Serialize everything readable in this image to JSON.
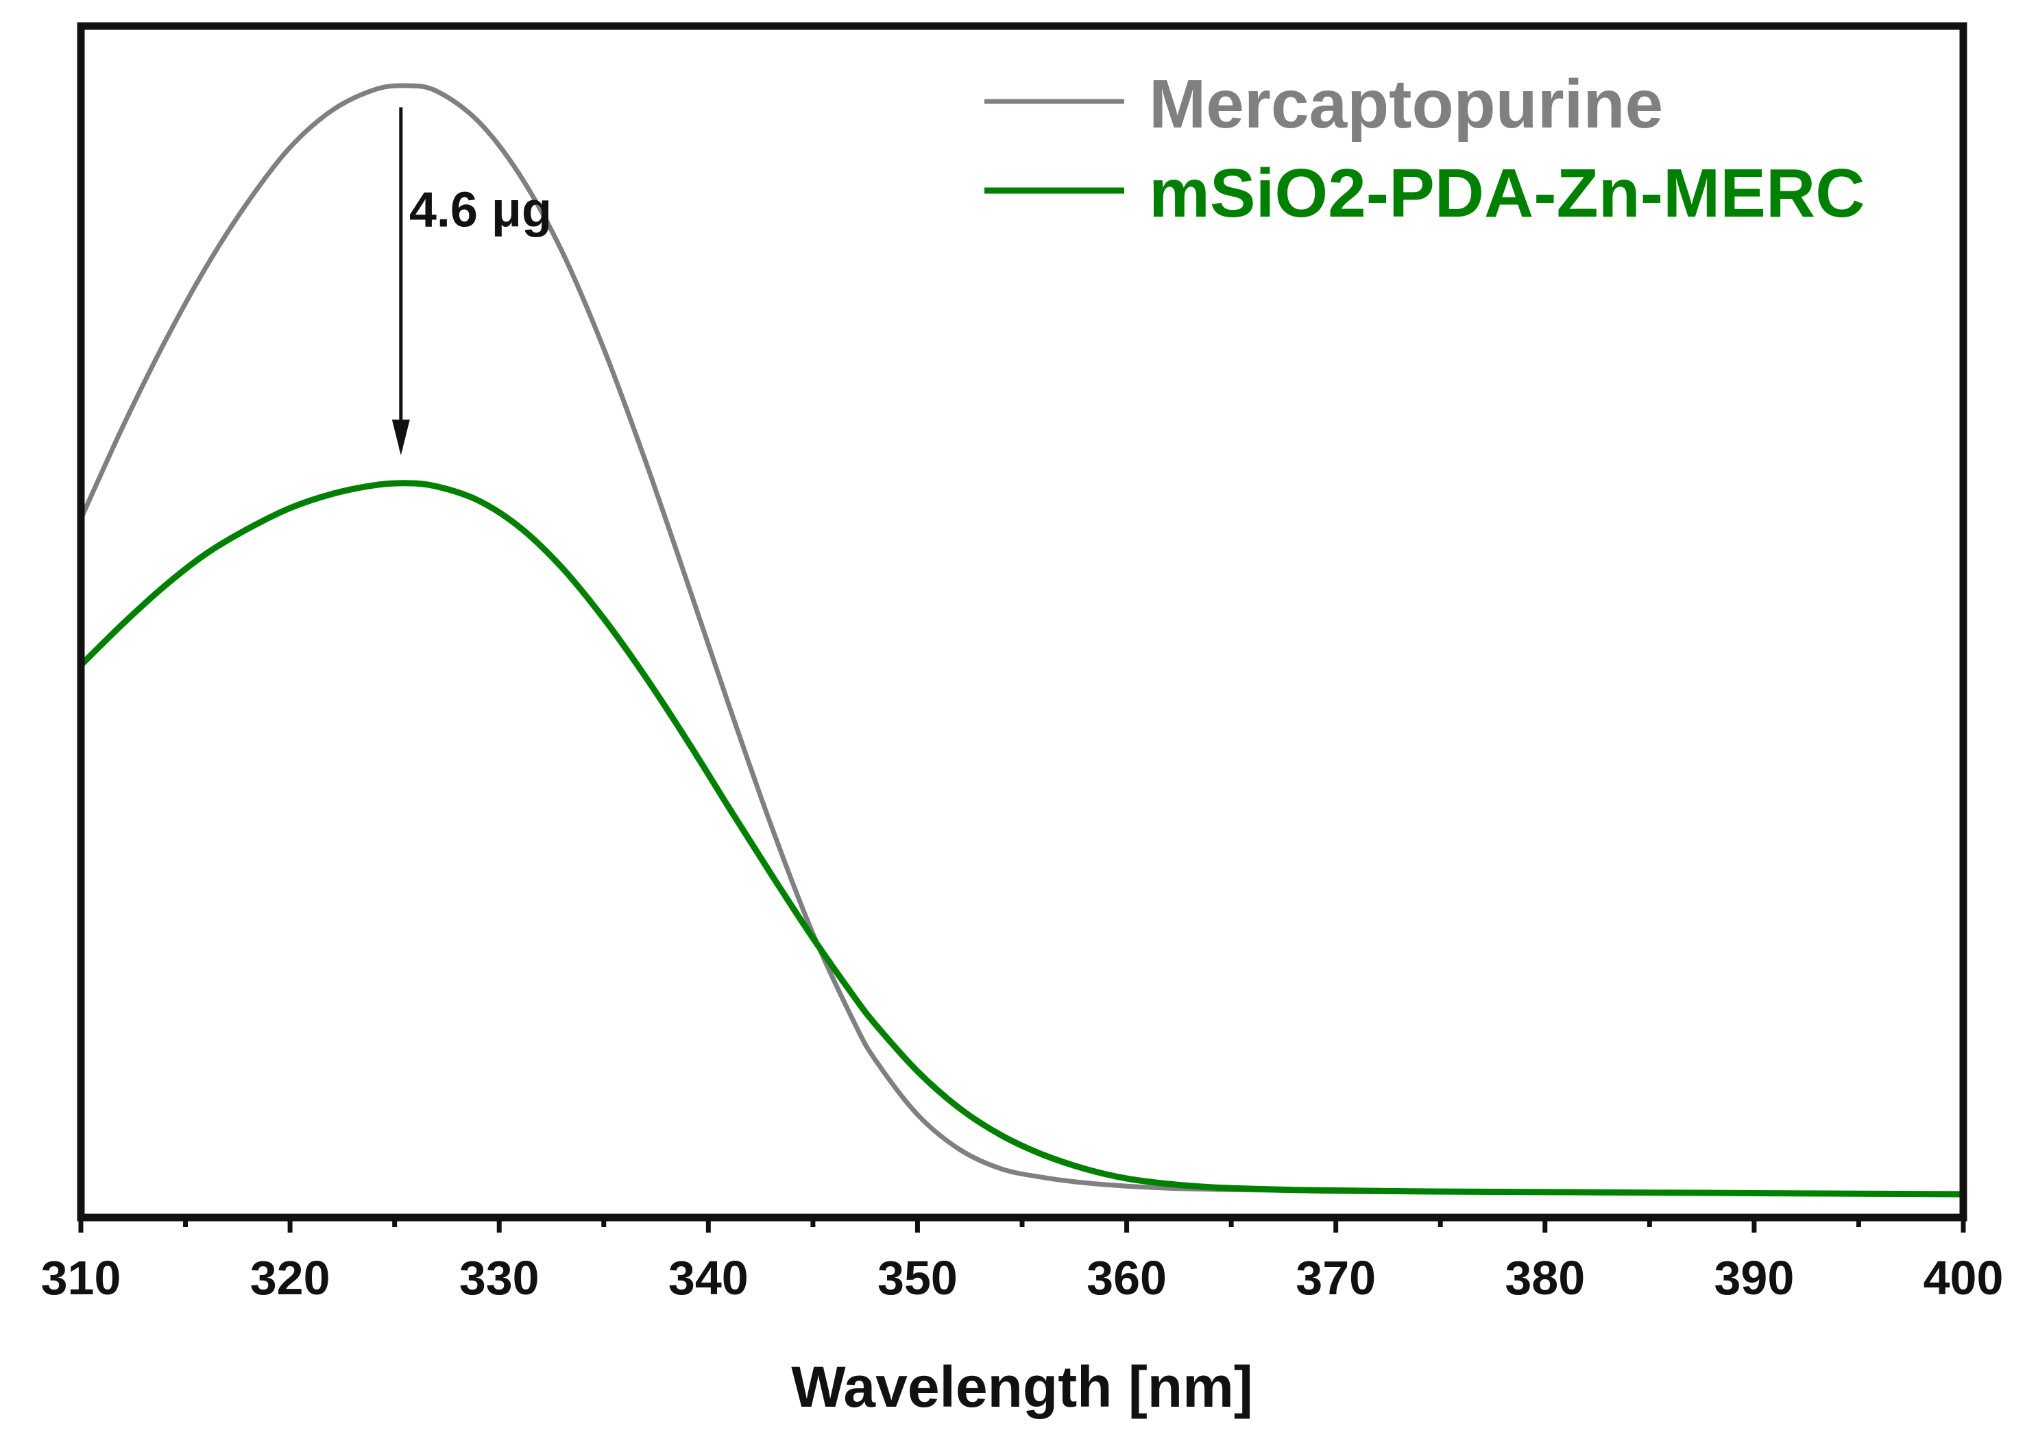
{
  "chart_data": {
    "type": "line",
    "title": "",
    "xlabel": "Wavelength [nm]",
    "ylabel": "",
    "xlim": [
      310,
      400
    ],
    "ylim": [
      0,
      1.1
    ],
    "xticks": [
      310,
      320,
      330,
      340,
      350,
      360,
      370,
      380,
      390,
      400
    ],
    "xtick_labels": [
      "310",
      "320",
      "330",
      "340",
      "350",
      "360",
      "370",
      "380",
      "390",
      "400"
    ],
    "grid": false,
    "legend_position": "top-right",
    "series": [
      {
        "name": "Mercaptopurine",
        "color": "#808080",
        "x": [
          310,
          312,
          314,
          316,
          318,
          320,
          322,
          324,
          325.5,
          327,
          329,
          331,
          333,
          335,
          337,
          339,
          341,
          343,
          345,
          347,
          348,
          350,
          352,
          354,
          356,
          358,
          360,
          362,
          364,
          366,
          368,
          370,
          375,
          380,
          385,
          390,
          395,
          400
        ],
        "values": [
          0.645,
          0.73,
          0.808,
          0.878,
          0.938,
          0.988,
          1.022,
          1.041,
          1.045,
          1.04,
          1.012,
          0.962,
          0.892,
          0.802,
          0.698,
          0.586,
          0.472,
          0.362,
          0.262,
          0.179,
          0.145,
          0.095,
          0.063,
          0.045,
          0.037,
          0.032,
          0.029,
          0.027,
          0.026,
          0.0255,
          0.025,
          0.024,
          0.0235,
          0.023,
          0.0225,
          0.022,
          0.0215,
          0.021
        ]
      },
      {
        "name": "mSiO2-PDA-Zn-MERC",
        "color": "#008000",
        "x": [
          310,
          312,
          314,
          316,
          318,
          320,
          322,
          324,
          325.5,
          327,
          329,
          331,
          333,
          335,
          337,
          339,
          341,
          343,
          345,
          347,
          348,
          350,
          352,
          354,
          356,
          358,
          360,
          362,
          364,
          366,
          368,
          370,
          375,
          380,
          385,
          390,
          395,
          400
        ],
        "values": [
          0.51,
          0.548,
          0.583,
          0.613,
          0.636,
          0.655,
          0.668,
          0.676,
          0.678,
          0.675,
          0.662,
          0.637,
          0.6,
          0.553,
          0.499,
          0.44,
          0.378,
          0.317,
          0.258,
          0.203,
          0.178,
          0.135,
          0.101,
          0.076,
          0.058,
          0.045,
          0.036,
          0.031,
          0.028,
          0.0265,
          0.0255,
          0.025,
          0.024,
          0.0235,
          0.023,
          0.0225,
          0.022,
          0.0215
        ]
      }
    ],
    "annotations": [
      {
        "text": "4.6 μg",
        "x": 325.3,
        "y_from": 1.025,
        "y_to": 0.705
      }
    ]
  }
}
